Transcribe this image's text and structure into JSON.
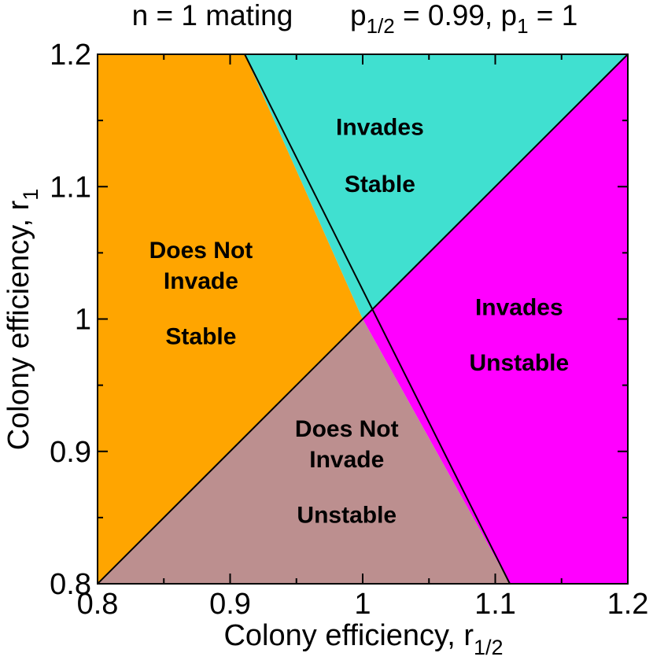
{
  "chart_data": {
    "type": "area",
    "title_left": "n = 1 mating",
    "title_right": {
      "p_half_symbol": "p",
      "p_half_sub": "1/2",
      "p_half_value": " = 0.99,  ",
      "p_one_symbol": "p",
      "p_one_sub": "1",
      "p_one_value": " = 1"
    },
    "xlabel": {
      "main": "Colony efficiency, r",
      "sub": "1/2"
    },
    "ylabel": {
      "main": "Colony efficiency, r",
      "sub": "1"
    },
    "xlim": [
      0.8,
      1.2
    ],
    "ylim": [
      0.8,
      1.2
    ],
    "x_ticks": [
      {
        "value": 0.8,
        "label": "0.8"
      },
      {
        "value": 0.9,
        "label": "0.9"
      },
      {
        "value": 1.0,
        "label": "1"
      },
      {
        "value": 1.1,
        "label": "1.1"
      },
      {
        "value": 1.2,
        "label": "1.2"
      }
    ],
    "y_ticks": [
      {
        "value": 0.8,
        "label": "0.8"
      },
      {
        "value": 0.9,
        "label": "0.9"
      },
      {
        "value": 1.0,
        "label": "1"
      },
      {
        "value": 1.1,
        "label": "1.1"
      },
      {
        "value": 1.2,
        "label": "1.2"
      }
    ],
    "minor_tick_step": 0.05,
    "intersection": {
      "x": 1.0,
      "y": 1.0
    },
    "boundaries": [
      {
        "from": {
          "x": 0.8,
          "y": 0.8
        },
        "to": {
          "x": 1.2,
          "y": 1.2
        }
      },
      {
        "from": {
          "x": 0.911,
          "y": 1.2
        },
        "to": {
          "x": 1.111,
          "y": 0.8
        }
      }
    ],
    "regions": [
      {
        "color": "#ffa500",
        "polygon": [
          {
            "x": 0.8,
            "y": 0.8
          },
          {
            "x": 1.0,
            "y": 1.0
          },
          {
            "x": 0.911,
            "y": 1.2
          },
          {
            "x": 0.8,
            "y": 1.2
          }
        ],
        "labels": [
          {
            "text": "Does Not",
            "x": 0.878,
            "y": 1.046
          },
          {
            "text": "Invade",
            "x": 0.878,
            "y": 1.023
          },
          {
            "text": "Stable",
            "x": 0.878,
            "y": 0.981
          }
        ]
      },
      {
        "color": "#40e0d0",
        "polygon": [
          {
            "x": 0.911,
            "y": 1.2
          },
          {
            "x": 1.2,
            "y": 1.2
          },
          {
            "x": 1.0,
            "y": 1.0
          }
        ],
        "labels": [
          {
            "text": "Invades",
            "x": 1.013,
            "y": 1.139
          },
          {
            "text": "Stable",
            "x": 1.013,
            "y": 1.096
          }
        ]
      },
      {
        "color": "#ff00ff",
        "polygon": [
          {
            "x": 1.0,
            "y": 1.0
          },
          {
            "x": 1.2,
            "y": 1.2
          },
          {
            "x": 1.2,
            "y": 0.8
          },
          {
            "x": 1.111,
            "y": 0.8
          }
        ],
        "labels": [
          {
            "text": "Invades",
            "x": 1.118,
            "y": 1.003
          },
          {
            "text": "Unstable",
            "x": 1.118,
            "y": 0.961
          }
        ]
      },
      {
        "color": "#bc8f8f",
        "polygon": [
          {
            "x": 0.8,
            "y": 0.8
          },
          {
            "x": 1.111,
            "y": 0.8
          },
          {
            "x": 1.0,
            "y": 1.0
          }
        ],
        "labels": [
          {
            "text": "Does Not",
            "x": 0.988,
            "y": 0.911
          },
          {
            "text": "Invade",
            "x": 0.988,
            "y": 0.888
          },
          {
            "text": "Unstable",
            "x": 0.988,
            "y": 0.846
          }
        ]
      }
    ]
  }
}
